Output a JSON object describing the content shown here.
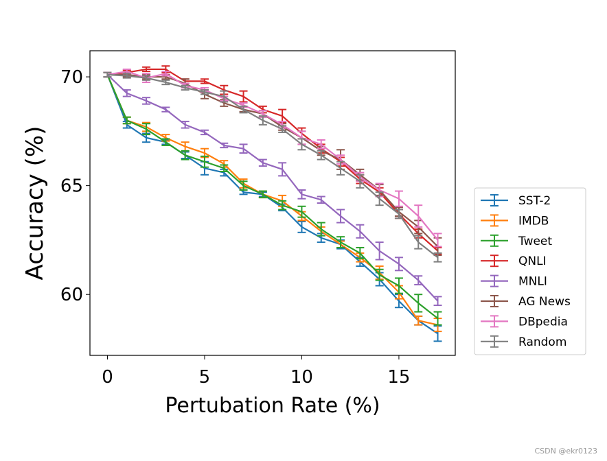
{
  "chart_data": {
    "type": "line",
    "title": "",
    "xlabel": "Pertubation Rate (%)",
    "ylabel": "Accuracy (%)",
    "xlim": [
      -0.9,
      17.9
    ],
    "ylim": [
      57.2,
      71.2
    ],
    "xticks": [
      0,
      5,
      10,
      15
    ],
    "yticks": [
      60,
      65,
      70
    ],
    "grid": false,
    "legend_position": "outside-right",
    "error_bars": true,
    "x": [
      0,
      1,
      2,
      3,
      4,
      5,
      6,
      7,
      8,
      9,
      10,
      11,
      12,
      13,
      14,
      15,
      16,
      17
    ],
    "series": [
      {
        "name": "SST-2",
        "color": "#1f77b4",
        "values": [
          70.1,
          67.8,
          67.2,
          67.0,
          66.4,
          65.8,
          65.6,
          64.7,
          64.6,
          64.0,
          63.1,
          62.6,
          62.3,
          61.5,
          60.7,
          59.7,
          58.8,
          58.2
        ],
        "errors": [
          0.1,
          0.15,
          0.2,
          0.1,
          0.15,
          0.3,
          0.15,
          0.1,
          0.1,
          0.15,
          0.25,
          0.2,
          0.2,
          0.2,
          0.3,
          0.3,
          0.2,
          0.35
        ]
      },
      {
        "name": "IMDB",
        "color": "#ff7f0e",
        "values": [
          70.1,
          68.0,
          67.7,
          67.2,
          66.8,
          66.5,
          66.0,
          65.1,
          64.6,
          64.3,
          63.6,
          62.9,
          62.3,
          61.7,
          61.0,
          60.1,
          58.8,
          58.6
        ],
        "errors": [
          0.1,
          0.15,
          0.2,
          0.15,
          0.2,
          0.2,
          0.15,
          0.2,
          0.15,
          0.25,
          0.2,
          0.2,
          0.15,
          0.2,
          0.3,
          0.3,
          0.2,
          0.3
        ]
      },
      {
        "name": "Tweet",
        "color": "#2ca02c",
        "values": [
          70.1,
          68.0,
          67.6,
          67.0,
          66.4,
          66.1,
          65.8,
          65.0,
          64.6,
          64.1,
          63.8,
          63.0,
          62.4,
          61.9,
          60.9,
          60.4,
          59.6,
          58.9
        ],
        "errors": [
          0.1,
          0.15,
          0.25,
          0.15,
          0.2,
          0.25,
          0.15,
          0.2,
          0.15,
          0.2,
          0.25,
          0.3,
          0.25,
          0.25,
          0.25,
          0.35,
          0.4,
          0.3
        ]
      },
      {
        "name": "QNLI",
        "color": "#d62728",
        "values": [
          70.1,
          70.2,
          70.35,
          70.35,
          69.8,
          69.8,
          69.4,
          69.1,
          68.5,
          68.2,
          67.4,
          66.7,
          66.1,
          65.3,
          64.7,
          63.7,
          62.8,
          62.0
        ],
        "errors": [
          0.1,
          0.1,
          0.1,
          0.15,
          0.1,
          0.1,
          0.2,
          0.25,
          0.15,
          0.3,
          0.25,
          0.2,
          0.2,
          0.2,
          0.2,
          0.2,
          0.2,
          0.15
        ]
      },
      {
        "name": "MNLI",
        "color": "#9467bd",
        "values": [
          70.1,
          69.25,
          68.9,
          68.5,
          67.8,
          67.45,
          66.85,
          66.7,
          66.05,
          65.75,
          64.6,
          64.35,
          63.6,
          62.9,
          62.0,
          61.4,
          60.65,
          59.7
        ],
        "errors": [
          0.1,
          0.15,
          0.15,
          0.1,
          0.15,
          0.1,
          0.1,
          0.2,
          0.15,
          0.3,
          0.2,
          0.15,
          0.3,
          0.3,
          0.4,
          0.3,
          0.2,
          0.2
        ]
      },
      {
        "name": "AG News",
        "color": "#8c564b",
        "values": [
          70.1,
          70.1,
          70.0,
          70.0,
          69.7,
          69.2,
          68.8,
          68.5,
          68.3,
          67.7,
          67.2,
          66.6,
          66.2,
          65.5,
          64.8,
          63.8,
          63.1,
          62.2
        ],
        "errors": [
          0.1,
          0.1,
          0.1,
          0.1,
          0.2,
          0.2,
          0.15,
          0.1,
          0.15,
          0.15,
          0.3,
          0.2,
          0.45,
          0.25,
          0.25,
          0.2,
          0.3,
          0.4
        ]
      },
      {
        "name": "DBpedia",
        "color": "#e377c2",
        "values": [
          70.1,
          70.25,
          69.95,
          70.15,
          69.6,
          69.4,
          69.0,
          68.7,
          68.3,
          67.8,
          67.2,
          66.9,
          66.2,
          65.4,
          64.8,
          64.4,
          63.6,
          62.5
        ],
        "errors": [
          0.1,
          0.1,
          0.2,
          0.1,
          0.1,
          0.1,
          0.1,
          0.1,
          0.15,
          0.15,
          0.3,
          0.2,
          0.2,
          0.2,
          0.3,
          0.35,
          0.5,
          0.3
        ]
      },
      {
        "name": "Random",
        "color": "#7f7f7f",
        "values": [
          70.1,
          70.05,
          69.95,
          69.75,
          69.5,
          69.3,
          69.1,
          68.5,
          68.0,
          67.6,
          66.9,
          66.4,
          65.8,
          65.2,
          64.4,
          63.7,
          62.4,
          61.7
        ],
        "errors": [
          0.1,
          0.1,
          0.1,
          0.1,
          0.1,
          0.1,
          0.25,
          0.15,
          0.2,
          0.15,
          0.25,
          0.2,
          0.3,
          0.3,
          0.3,
          0.2,
          0.3,
          0.2
        ]
      }
    ]
  },
  "watermark": "CSDN @ekr0123"
}
